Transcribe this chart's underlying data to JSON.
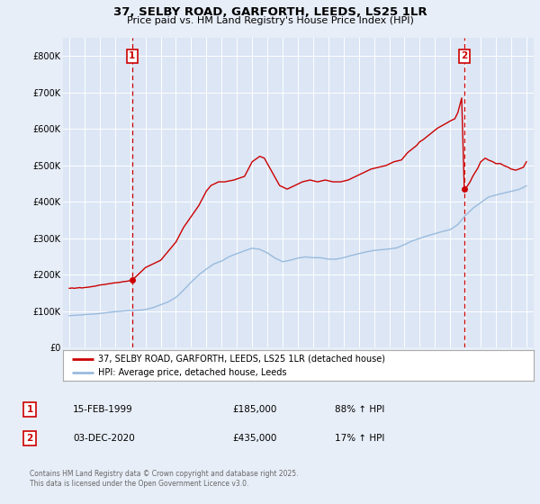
{
  "title": "37, SELBY ROAD, GARFORTH, LEEDS, LS25 1LR",
  "subtitle": "Price paid vs. HM Land Registry's House Price Index (HPI)",
  "bg_color": "#e8eef8",
  "plot_bg_color": "#dce6f5",
  "red_color": "#cc0000",
  "blue_color": "#99bbdd",
  "marker1_date_x": 1999.12,
  "marker1_value": 185000,
  "marker2_date_x": 2020.92,
  "marker2_value": 435000,
  "marker1_label": "1",
  "marker2_label": "2",
  "xmin": 1994.6,
  "xmax": 2025.5,
  "ymin": 0,
  "ymax": 850000,
  "yticks": [
    0,
    100000,
    200000,
    300000,
    400000,
    500000,
    600000,
    700000,
    800000
  ],
  "ytick_labels": [
    "£0",
    "£100K",
    "£200K",
    "£300K",
    "£400K",
    "£500K",
    "£600K",
    "£700K",
    "£800K"
  ],
  "legend1": "37, SELBY ROAD, GARFORTH, LEEDS, LS25 1LR (detached house)",
  "legend2": "HPI: Average price, detached house, Leeds",
  "info1_num": "1",
  "info1_date": "15-FEB-1999",
  "info1_price": "£185,000",
  "info1_hpi": "88% ↑ HPI",
  "info2_num": "2",
  "info2_date": "03-DEC-2020",
  "info2_price": "£435,000",
  "info2_hpi": "17% ↑ HPI",
  "footnote1": "Contains HM Land Registry data © Crown copyright and database right 2025.",
  "footnote2": "This data is licensed under the Open Government Licence v3.0.",
  "red_x": [
    1995.0,
    1995.1,
    1995.2,
    1995.3,
    1995.4,
    1995.5,
    1995.6,
    1995.7,
    1995.8,
    1995.9,
    1996.0,
    1996.1,
    1996.2,
    1996.3,
    1996.4,
    1996.5,
    1996.6,
    1996.7,
    1996.8,
    1996.9,
    1997.0,
    1997.1,
    1997.2,
    1997.3,
    1997.4,
    1997.5,
    1997.6,
    1997.7,
    1997.8,
    1997.9,
    1998.0,
    1998.1,
    1998.2,
    1998.3,
    1998.4,
    1998.5,
    1998.6,
    1998.7,
    1998.8,
    1998.9,
    1999.0,
    1999.12,
    1999.5,
    2000.0,
    2001.0,
    2002.0,
    2002.5,
    2003.0,
    2003.5,
    2004.0,
    2004.3,
    2004.8,
    2005.2,
    2005.8,
    2006.5,
    2007.0,
    2007.5,
    2007.8,
    2008.2,
    2008.8,
    2009.3,
    2009.8,
    2010.3,
    2010.8,
    2011.3,
    2011.8,
    2012.3,
    2012.8,
    2013.3,
    2013.8,
    2014.3,
    2014.8,
    2015.3,
    2015.8,
    2016.3,
    2016.8,
    2017.0,
    2017.2,
    2017.5,
    2017.8,
    2018.0,
    2018.2,
    2018.5,
    2018.8,
    2019.0,
    2019.2,
    2019.5,
    2019.8,
    2020.0,
    2020.3,
    2020.5,
    2020.75,
    2020.92,
    2021.1,
    2021.3,
    2021.5,
    2021.8,
    2022.0,
    2022.3,
    2022.5,
    2022.8,
    2023.0,
    2023.3,
    2023.5,
    2023.8,
    2024.0,
    2024.3,
    2024.5,
    2024.8,
    2025.0
  ],
  "red_y": [
    163000,
    163500,
    164000,
    163000,
    163500,
    164000,
    164500,
    165000,
    164000,
    164500,
    165000,
    165500,
    166000,
    166500,
    167000,
    168000,
    168500,
    169000,
    170000,
    171000,
    172000,
    172500,
    173000,
    173500,
    174000,
    175000,
    175500,
    176000,
    177000,
    177500,
    178000,
    178500,
    179000,
    179500,
    180000,
    181000,
    181500,
    182000,
    182500,
    183500,
    184000,
    185000,
    200000,
    220000,
    240000,
    290000,
    330000,
    360000,
    390000,
    430000,
    445000,
    455000,
    455000,
    460000,
    470000,
    510000,
    525000,
    520000,
    490000,
    445000,
    435000,
    445000,
    455000,
    460000,
    455000,
    460000,
    455000,
    455000,
    460000,
    470000,
    480000,
    490000,
    495000,
    500000,
    510000,
    515000,
    525000,
    535000,
    545000,
    555000,
    565000,
    570000,
    580000,
    590000,
    597000,
    603000,
    610000,
    617000,
    622000,
    628000,
    645000,
    685000,
    435000,
    442000,
    455000,
    472000,
    492000,
    510000,
    520000,
    515000,
    510000,
    505000,
    505000,
    500000,
    495000,
    490000,
    487000,
    490000,
    495000,
    510000
  ],
  "blue_x": [
    1995.0,
    1995.2,
    1995.4,
    1995.6,
    1995.8,
    1996.0,
    1996.2,
    1996.4,
    1996.6,
    1996.8,
    1997.0,
    1997.2,
    1997.4,
    1997.6,
    1997.8,
    1998.0,
    1998.2,
    1998.4,
    1998.6,
    1998.8,
    1999.0,
    1999.2,
    1999.5,
    1999.8,
    2000.0,
    2000.5,
    2001.0,
    2001.5,
    2002.0,
    2002.5,
    2003.0,
    2003.5,
    2004.0,
    2004.5,
    2005.0,
    2005.5,
    2006.0,
    2006.5,
    2007.0,
    2007.5,
    2008.0,
    2008.5,
    2009.0,
    2009.5,
    2010.0,
    2010.5,
    2011.0,
    2011.5,
    2012.0,
    2012.5,
    2013.0,
    2013.5,
    2014.0,
    2014.5,
    2015.0,
    2015.5,
    2016.0,
    2016.5,
    2017.0,
    2017.5,
    2018.0,
    2018.5,
    2019.0,
    2019.5,
    2020.0,
    2020.5,
    2021.0,
    2021.5,
    2022.0,
    2022.5,
    2023.0,
    2023.5,
    2024.0,
    2024.5,
    2025.0
  ],
  "blue_y": [
    88000,
    88500,
    89000,
    89500,
    90000,
    91000,
    91500,
    92000,
    92500,
    93000,
    94000,
    95000,
    96000,
    97000,
    98000,
    99000,
    99500,
    100000,
    101000,
    101500,
    102000,
    102500,
    103000,
    103500,
    105000,
    110000,
    118000,
    126000,
    138000,
    158000,
    180000,
    200000,
    216000,
    230000,
    238000,
    250000,
    258000,
    266000,
    273000,
    270000,
    260000,
    246000,
    236000,
    240000,
    246000,
    249000,
    247000,
    247000,
    243000,
    243000,
    247000,
    253000,
    258000,
    263000,
    267000,
    269000,
    271000,
    274000,
    283000,
    293000,
    300000,
    307000,
    313000,
    319000,
    324000,
    338000,
    363000,
    383000,
    398000,
    413000,
    419000,
    424000,
    429000,
    434000,
    444000
  ]
}
